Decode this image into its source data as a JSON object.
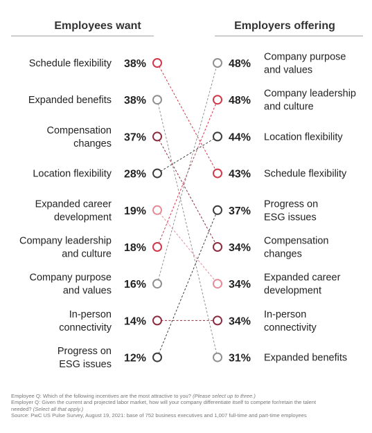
{
  "chart_data": {
    "type": "slope",
    "left_header": "Employees want",
    "right_header": "Employers offering",
    "left_items": [
      {
        "label": "Schedule flexibility",
        "value": 38,
        "display": "38%",
        "color": "#d1374a"
      },
      {
        "label": "Expanded benefits",
        "value": 38,
        "display": "38%",
        "color": "#8f8f8f"
      },
      {
        "label": "Compensation changes",
        "value": 37,
        "display": "37%",
        "color": "#8c2b3e"
      },
      {
        "label": "Location flexibility",
        "value": 28,
        "display": "28%",
        "color": "#3c3c3c"
      },
      {
        "label": "Expanded career development",
        "value": 19,
        "display": "19%",
        "color": "#e58b98"
      },
      {
        "label": "Company leadership and culture",
        "value": 18,
        "display": "18%",
        "color": "#d1374a"
      },
      {
        "label": "Company purpose and values",
        "value": 16,
        "display": "16%",
        "color": "#8f8f8f"
      },
      {
        "label": "In-person connectivity",
        "value": 14,
        "display": "14%",
        "color": "#8c2b3e"
      },
      {
        "label": "Progress on ESG issues",
        "value": 12,
        "display": "12%",
        "color": "#3c3c3c"
      }
    ],
    "right_items": [
      {
        "label": "Company purpose and values",
        "value": 48,
        "display": "48%",
        "color": "#8f8f8f"
      },
      {
        "label": "Company leadership and culture",
        "value": 48,
        "display": "48%",
        "color": "#d1374a"
      },
      {
        "label": "Location flexibility",
        "value": 44,
        "display": "44%",
        "color": "#3c3c3c"
      },
      {
        "label": "Schedule flexibility",
        "value": 43,
        "display": "43%",
        "color": "#d1374a"
      },
      {
        "label": "Progress on ESG issues",
        "value": 37,
        "display": "37%",
        "color": "#3c3c3c"
      },
      {
        "label": "Compensation changes",
        "value": 34,
        "display": "34%",
        "color": "#8c2b3e"
      },
      {
        "label": "Expanded career development",
        "value": 34,
        "display": "34%",
        "color": "#e58b98"
      },
      {
        "label": "In-person connectivity",
        "value": 34,
        "display": "34%",
        "color": "#8c2b3e"
      },
      {
        "label": "Expanded benefits",
        "value": 31,
        "display": "31%",
        "color": "#8f8f8f"
      }
    ]
  },
  "labels": {
    "Schedule flexibility": [
      "Schedule flexibility"
    ],
    "Expanded benefits": [
      "Expanded benefits"
    ],
    "Compensation changes": [
      "Compensation",
      "changes"
    ],
    "Location flexibility": [
      "Location flexibility"
    ],
    "Expanded career development": [
      "Expanded career",
      "development"
    ],
    "Company leadership and culture": [
      "Company leadership",
      "and culture"
    ],
    "Company purpose and values": [
      "Company purpose",
      "and values"
    ],
    "In-person connectivity": [
      "In-person",
      "connectivity"
    ],
    "Progress on ESG issues": [
      "Progress on",
      "ESG issues"
    ]
  },
  "footer": {
    "employee_q": "Employee Q: Which of the following incentives are the most attractive to you?",
    "employee_note": "(Please select up to three.)",
    "employer_q_line1": "Employer Q: Given the current and projected labor market, how will your company differentiate itself to compete for/retain the talent",
    "employer_q_line2": "needed?",
    "employer_note": "(Select all that apply.)",
    "source": "Source: PwC US Pulse Survey, August 19, 2021: base of 752 business executives and 1,007 full-time and part-time employees"
  }
}
